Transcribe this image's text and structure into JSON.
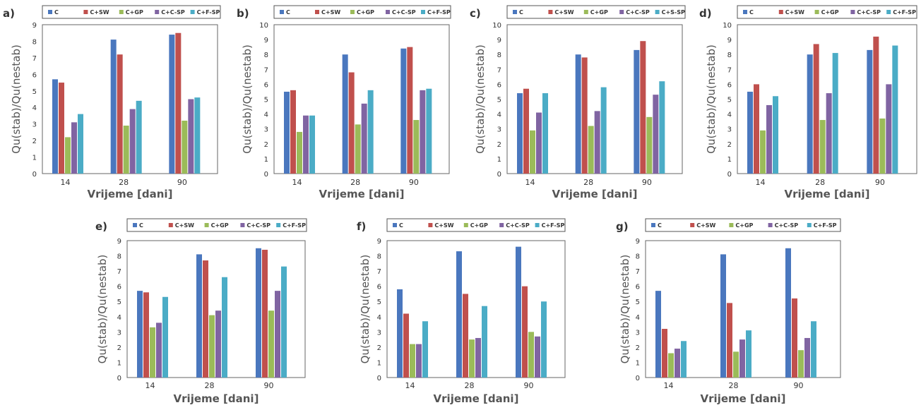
{
  "series_colors": [
    "#4a77be",
    "#c0504d",
    "#9bbb59",
    "#8064a2",
    "#4bacc6"
  ],
  "chart_data": [
    {
      "type": "bar",
      "panel_label": "a)",
      "xlabel": "Vrijeme [dani]",
      "ylabel": "Qu(stab)/Qu(nestab)",
      "ylim": [
        0,
        9
      ],
      "yticks": [
        0,
        1,
        2,
        3,
        4,
        5,
        6,
        7,
        8,
        9
      ],
      "categories": [
        "14",
        "28",
        "90"
      ],
      "legend_placement": "top",
      "series": [
        {
          "name": "C",
          "values": [
            5.7,
            8.1,
            8.4
          ]
        },
        {
          "name": "C+SW",
          "values": [
            5.5,
            7.2,
            8.5
          ]
        },
        {
          "name": "C+GP",
          "values": [
            2.2,
            2.9,
            3.2
          ]
        },
        {
          "name": "C+C-SP",
          "values": [
            3.1,
            3.9,
            4.5
          ]
        },
        {
          "name": "C+F-SP",
          "values": [
            3.6,
            4.4,
            4.6
          ]
        }
      ]
    },
    {
      "type": "bar",
      "panel_label": "b)",
      "xlabel": "Vrijeme [dani]",
      "ylabel": "Qu(stab)/Qu(nestab)",
      "ylim": [
        0,
        10
      ],
      "yticks": [
        0,
        1,
        2,
        3,
        4,
        5,
        6,
        7,
        8,
        9,
        10
      ],
      "categories": [
        "14",
        "28",
        "90"
      ],
      "legend_placement": "top",
      "series": [
        {
          "name": "C",
          "values": [
            5.5,
            8.0,
            8.4
          ]
        },
        {
          "name": "C+SW",
          "values": [
            5.6,
            6.8,
            8.5
          ]
        },
        {
          "name": "C+GP",
          "values": [
            2.8,
            3.3,
            3.6
          ]
        },
        {
          "name": "C+C-SP",
          "values": [
            3.9,
            4.7,
            5.6
          ]
        },
        {
          "name": "C+F-SP",
          "values": [
            3.9,
            5.6,
            5.7
          ]
        }
      ]
    },
    {
      "type": "bar",
      "panel_label": "c)",
      "xlabel": "Vrijeme [dani]",
      "ylabel": "Qu(stab)/Qu(nestab)",
      "ylim": [
        0,
        10
      ],
      "yticks": [
        0,
        1,
        2,
        3,
        4,
        5,
        6,
        7,
        8,
        9,
        10
      ],
      "categories": [
        "14",
        "28",
        "90"
      ],
      "legend_placement": "top",
      "series": [
        {
          "name": "C",
          "values": [
            5.4,
            8.0,
            8.3
          ]
        },
        {
          "name": "C+SW",
          "values": [
            5.7,
            7.8,
            8.9
          ]
        },
        {
          "name": "C+GP",
          "values": [
            2.9,
            3.2,
            3.8
          ]
        },
        {
          "name": "C+C-SP",
          "values": [
            4.1,
            4.2,
            5.3
          ]
        },
        {
          "name": "C+S-SP",
          "values": [
            5.4,
            5.8,
            6.2
          ]
        }
      ]
    },
    {
      "type": "bar",
      "panel_label": "d)",
      "xlabel": "Vrijeme [dani]",
      "ylabel": "Qu(stab)/Qu(nestab)",
      "ylim": [
        0,
        10
      ],
      "yticks": [
        0,
        1,
        2,
        3,
        4,
        5,
        6,
        7,
        8,
        9,
        10
      ],
      "categories": [
        "14",
        "28",
        "90"
      ],
      "legend_placement": "top",
      "series": [
        {
          "name": "C",
          "values": [
            5.5,
            8.0,
            8.3
          ]
        },
        {
          "name": "C+SW",
          "values": [
            6.0,
            8.7,
            9.2
          ]
        },
        {
          "name": "C+GP",
          "values": [
            2.9,
            3.6,
            3.7
          ]
        },
        {
          "name": "C+C-SP",
          "values": [
            4.6,
            5.4,
            6.0
          ]
        },
        {
          "name": "C+F-SP",
          "values": [
            5.2,
            8.1,
            8.6
          ]
        }
      ]
    },
    {
      "type": "bar",
      "panel_label": "e)",
      "xlabel": "Vrijeme [dani]",
      "ylabel": "Qu(stab)/Qu(nestab)",
      "ylim": [
        0,
        9
      ],
      "yticks": [
        0,
        1,
        2,
        3,
        4,
        5,
        6,
        7,
        8,
        9
      ],
      "categories": [
        "14",
        "28",
        "90"
      ],
      "legend_placement": "top",
      "series": [
        {
          "name": "C",
          "values": [
            5.7,
            8.1,
            8.5
          ]
        },
        {
          "name": "C+SW",
          "values": [
            5.6,
            7.7,
            8.4
          ]
        },
        {
          "name": "C+GP",
          "values": [
            3.3,
            4.1,
            4.4
          ]
        },
        {
          "name": "C+C-SP",
          "values": [
            3.6,
            4.4,
            5.7
          ]
        },
        {
          "name": "C+F-SP",
          "values": [
            5.3,
            6.6,
            7.3
          ]
        }
      ]
    },
    {
      "type": "bar",
      "panel_label": "f)",
      "xlabel": "Vrijeme [dani]",
      "ylabel": "Qu(stab)/Qu(nestab)",
      "ylim": [
        0,
        9
      ],
      "yticks": [
        0,
        1,
        2,
        3,
        4,
        5,
        6,
        7,
        8,
        9
      ],
      "categories": [
        "14",
        "28",
        "90"
      ],
      "legend_placement": "top",
      "series": [
        {
          "name": "C",
          "values": [
            5.8,
            8.3,
            8.6
          ]
        },
        {
          "name": "C+SW",
          "values": [
            4.2,
            5.5,
            6.0
          ]
        },
        {
          "name": "C+GP",
          "values": [
            2.2,
            2.5,
            3.0
          ]
        },
        {
          "name": "C+C-SP",
          "values": [
            2.2,
            2.6,
            2.7
          ]
        },
        {
          "name": "C+F-SP",
          "values": [
            3.7,
            4.7,
            5.0
          ]
        }
      ]
    },
    {
      "type": "bar",
      "panel_label": "g)",
      "xlabel": "Vrijeme [dani]",
      "ylabel": "Qu(stab)/Qu(nestab)",
      "ylim": [
        0,
        9
      ],
      "yticks": [
        0,
        1,
        2,
        3,
        4,
        5,
        6,
        7,
        8,
        9
      ],
      "categories": [
        "14",
        "28",
        "90"
      ],
      "legend_placement": "top",
      "series": [
        {
          "name": "C",
          "values": [
            5.7,
            8.1,
            8.5
          ]
        },
        {
          "name": "C+SW",
          "values": [
            3.2,
            4.9,
            5.2
          ]
        },
        {
          "name": "C+GP",
          "values": [
            1.6,
            1.7,
            1.8
          ]
        },
        {
          "name": "C+C-SP",
          "values": [
            1.9,
            2.5,
            2.6
          ]
        },
        {
          "name": "C+F-SP",
          "values": [
            2.4,
            3.1,
            3.7
          ]
        }
      ]
    }
  ]
}
